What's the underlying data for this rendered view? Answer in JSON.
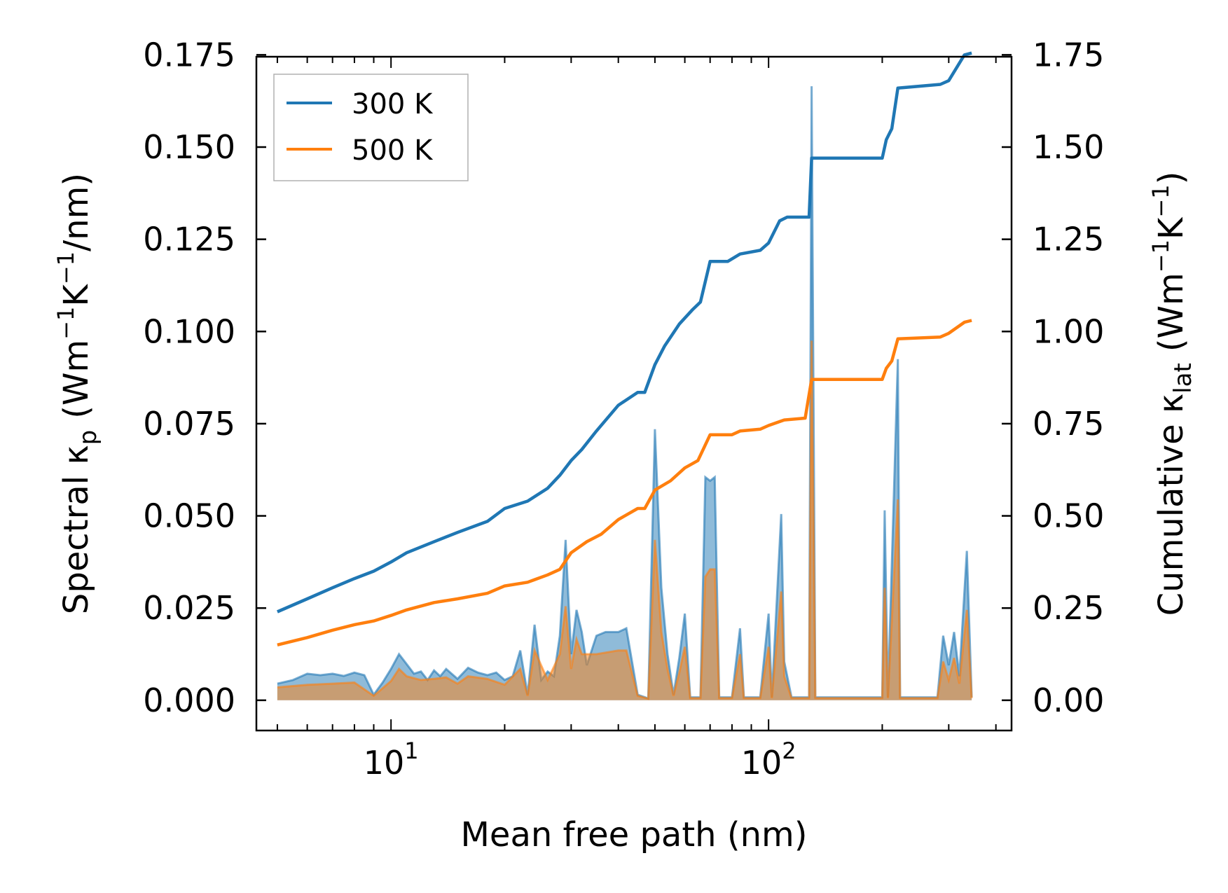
{
  "chart_data": {
    "type": "line",
    "xscale": "log",
    "xlim": [
      4.4,
      440
    ],
    "ylim_left": [
      -0.0082,
      0.1745
    ],
    "ylim_right": [
      -0.082,
      1.745
    ],
    "xlabel": "Mean free path (nm)",
    "ylabel_left": {
      "main": "Spectral κ",
      "sub": "p",
      "unit_pre": "(Wm",
      "exp1": "−1",
      "unit_mid": "K",
      "exp2": "−1",
      "unit_post": "/nm)"
    },
    "ylabel_right": {
      "main": "Cumulative κ",
      "sub": "lat",
      "unit_pre": "(Wm",
      "exp1": "−1",
      "unit_mid": "K",
      "exp2": "−1",
      "unit_post": ")"
    },
    "x_ticks": [
      {
        "value": 10,
        "base": "10",
        "exp": "1"
      },
      {
        "value": 100,
        "base": "10",
        "exp": "2"
      }
    ],
    "y_ticks_left": [
      "0.000",
      "0.025",
      "0.050",
      "0.075",
      "0.100",
      "0.125",
      "0.150",
      "0.175"
    ],
    "y_ticks_left_values": [
      0,
      0.025,
      0.05,
      0.075,
      0.1,
      0.125,
      0.15,
      0.175
    ],
    "y_ticks_right": [
      "0.00",
      "0.25",
      "0.50",
      "0.75",
      "1.00",
      "1.25",
      "1.50",
      "1.75"
    ],
    "y_ticks_right_values": [
      0,
      0.25,
      0.5,
      0.75,
      1.0,
      1.25,
      1.5,
      1.75
    ],
    "legend": {
      "position": "top-left",
      "entries": [
        {
          "label": "300 K",
          "color": "#1f77b4"
        },
        {
          "label": "500 K",
          "color": "#ff7f0e"
        }
      ]
    },
    "cumulative_series": [
      {
        "name": "300 K",
        "color": "#1f77b4",
        "points": [
          [
            5,
            0.24
          ],
          [
            6,
            0.275
          ],
          [
            7,
            0.305
          ],
          [
            8,
            0.33
          ],
          [
            9,
            0.35
          ],
          [
            10,
            0.375
          ],
          [
            11,
            0.4
          ],
          [
            13,
            0.43
          ],
          [
            15,
            0.455
          ],
          [
            18,
            0.485
          ],
          [
            20,
            0.52
          ],
          [
            23,
            0.54
          ],
          [
            26,
            0.575
          ],
          [
            28,
            0.61
          ],
          [
            30,
            0.65
          ],
          [
            32,
            0.68
          ],
          [
            35,
            0.73
          ],
          [
            40,
            0.8
          ],
          [
            45,
            0.835
          ],
          [
            47,
            0.835
          ],
          [
            50,
            0.91
          ],
          [
            53,
            0.96
          ],
          [
            58,
            1.02
          ],
          [
            63,
            1.06
          ],
          [
            66,
            1.08
          ],
          [
            70,
            1.19
          ],
          [
            78,
            1.19
          ],
          [
            84,
            1.21
          ],
          [
            95,
            1.22
          ],
          [
            100,
            1.24
          ],
          [
            107,
            1.3
          ],
          [
            112,
            1.31
          ],
          [
            128,
            1.31
          ],
          [
            130,
            1.47
          ],
          [
            200,
            1.47
          ],
          [
            205,
            1.52
          ],
          [
            212,
            1.55
          ],
          [
            220,
            1.66
          ],
          [
            285,
            1.67
          ],
          [
            300,
            1.68
          ],
          [
            330,
            1.75
          ],
          [
            345,
            1.755
          ]
        ]
      },
      {
        "name": "500 K",
        "color": "#ff7f0e",
        "points": [
          [
            5,
            0.15
          ],
          [
            6,
            0.17
          ],
          [
            7,
            0.19
          ],
          [
            8,
            0.205
          ],
          [
            9,
            0.215
          ],
          [
            10,
            0.23
          ],
          [
            11,
            0.245
          ],
          [
            13,
            0.265
          ],
          [
            15,
            0.275
          ],
          [
            18,
            0.29
          ],
          [
            20,
            0.31
          ],
          [
            23,
            0.32
          ],
          [
            26,
            0.34
          ],
          [
            28,
            0.355
          ],
          [
            30,
            0.4
          ],
          [
            33,
            0.43
          ],
          [
            36,
            0.45
          ],
          [
            40,
            0.49
          ],
          [
            45,
            0.52
          ],
          [
            47,
            0.52
          ],
          [
            50,
            0.57
          ],
          [
            55,
            0.595
          ],
          [
            60,
            0.63
          ],
          [
            65,
            0.65
          ],
          [
            70,
            0.72
          ],
          [
            80,
            0.72
          ],
          [
            84,
            0.73
          ],
          [
            95,
            0.735
          ],
          [
            100,
            0.745
          ],
          [
            110,
            0.76
          ],
          [
            125,
            0.765
          ],
          [
            130,
            0.87
          ],
          [
            200,
            0.87
          ],
          [
            205,
            0.9
          ],
          [
            212,
            0.92
          ],
          [
            220,
            0.98
          ],
          [
            285,
            0.985
          ],
          [
            300,
            0.995
          ],
          [
            330,
            1.025
          ],
          [
            345,
            1.03
          ]
        ]
      }
    ],
    "spectral_series": [
      {
        "name": "300 K",
        "color": "#1f77b4",
        "points": [
          [
            5,
            0.0045
          ],
          [
            5.5,
            0.0055
          ],
          [
            6,
            0.0072
          ],
          [
            6.5,
            0.0068
          ],
          [
            7,
            0.0072
          ],
          [
            7.5,
            0.0066
          ],
          [
            8,
            0.0075
          ],
          [
            8.5,
            0.0068
          ],
          [
            9,
            0.0015
          ],
          [
            9.5,
            0.0048
          ],
          [
            10,
            0.0085
          ],
          [
            10.5,
            0.0125
          ],
          [
            11,
            0.0098
          ],
          [
            11.5,
            0.0072
          ],
          [
            12,
            0.0078
          ],
          [
            12.5,
            0.0055
          ],
          [
            13,
            0.0081
          ],
          [
            13.5,
            0.0065
          ],
          [
            14,
            0.0085
          ],
          [
            15,
            0.0058
          ],
          [
            16,
            0.0088
          ],
          [
            17,
            0.0075
          ],
          [
            18,
            0.0068
          ],
          [
            19,
            0.0075
          ],
          [
            20,
            0.0055
          ],
          [
            21,
            0.0065
          ],
          [
            22,
            0.0135
          ],
          [
            23,
            0.0015
          ],
          [
            24,
            0.0205
          ],
          [
            25,
            0.0055
          ],
          [
            26,
            0.0078
          ],
          [
            27,
            0.0065
          ],
          [
            28,
            0.0175
          ],
          [
            29,
            0.0435
          ],
          [
            30,
            0.0125
          ],
          [
            31,
            0.0245
          ],
          [
            32,
            0.0185
          ],
          [
            33,
            0.0095
          ],
          [
            35,
            0.0175
          ],
          [
            37,
            0.0185
          ],
          [
            40,
            0.0185
          ],
          [
            42,
            0.0195
          ],
          [
            45,
            0.0015
          ],
          [
            48,
            0.0005
          ],
          [
            50,
            0.0735
          ],
          [
            52,
            0.0305
          ],
          [
            54,
            0.0125
          ],
          [
            56,
            0.0015
          ],
          [
            58,
            0.0115
          ],
          [
            60,
            0.0235
          ],
          [
            62,
            0.0008
          ],
          [
            66,
            0.0008
          ],
          [
            68,
            0.0605
          ],
          [
            70,
            0.0595
          ],
          [
            72,
            0.0605
          ],
          [
            74,
            0.0008
          ],
          [
            80,
            0.0008
          ],
          [
            84,
            0.0195
          ],
          [
            86,
            0.0008
          ],
          [
            95,
            0.0008
          ],
          [
            100,
            0.0235
          ],
          [
            102,
            0.0008
          ],
          [
            108,
            0.0505
          ],
          [
            110,
            0.0105
          ],
          [
            115,
            0.0008
          ],
          [
            128,
            0.0008
          ],
          [
            130,
            0.1665
          ],
          [
            133,
            0.0008
          ],
          [
            200,
            0.0008
          ],
          [
            203,
            0.0515
          ],
          [
            207,
            0.0008
          ],
          [
            220,
            0.0925
          ],
          [
            223,
            0.0008
          ],
          [
            280,
            0.0008
          ],
          [
            290,
            0.0175
          ],
          [
            300,
            0.0095
          ],
          [
            310,
            0.0185
          ],
          [
            320,
            0.0065
          ],
          [
            335,
            0.0405
          ],
          [
            345,
            0.0008
          ]
        ]
      },
      {
        "name": "500 K",
        "color": "#ff7f0e",
        "points": [
          [
            5,
            0.0035
          ],
          [
            6,
            0.0042
          ],
          [
            7,
            0.0045
          ],
          [
            8,
            0.0048
          ],
          [
            9,
            0.0012
          ],
          [
            10,
            0.0052
          ],
          [
            10.5,
            0.0085
          ],
          [
            11,
            0.0065
          ],
          [
            12,
            0.0055
          ],
          [
            13,
            0.0058
          ],
          [
            14,
            0.0062
          ],
          [
            15,
            0.0045
          ],
          [
            16,
            0.0065
          ],
          [
            18,
            0.0058
          ],
          [
            20,
            0.0042
          ],
          [
            22,
            0.0085
          ],
          [
            23,
            0.0012
          ],
          [
            24,
            0.0135
          ],
          [
            26,
            0.0055
          ],
          [
            28,
            0.0125
          ],
          [
            29,
            0.0255
          ],
          [
            30,
            0.0085
          ],
          [
            31,
            0.0165
          ],
          [
            32,
            0.0125
          ],
          [
            35,
            0.0125
          ],
          [
            40,
            0.0135
          ],
          [
            42,
            0.0135
          ],
          [
            45,
            0.0012
          ],
          [
            48,
            0.0004
          ],
          [
            50,
            0.0435
          ],
          [
            52,
            0.0185
          ],
          [
            54,
            0.0085
          ],
          [
            56,
            0.0012
          ],
          [
            58,
            0.0075
          ],
          [
            60,
            0.0145
          ],
          [
            62,
            0.0006
          ],
          [
            66,
            0.0006
          ],
          [
            68,
            0.0335
          ],
          [
            70,
            0.0355
          ],
          [
            72,
            0.0355
          ],
          [
            74,
            0.0006
          ],
          [
            80,
            0.0006
          ],
          [
            84,
            0.0125
          ],
          [
            86,
            0.0006
          ],
          [
            95,
            0.0006
          ],
          [
            100,
            0.0145
          ],
          [
            102,
            0.0006
          ],
          [
            108,
            0.0295
          ],
          [
            110,
            0.0065
          ],
          [
            115,
            0.0006
          ],
          [
            128,
            0.0006
          ],
          [
            130,
            0.0975
          ],
          [
            133,
            0.0006
          ],
          [
            200,
            0.0006
          ],
          [
            203,
            0.0305
          ],
          [
            207,
            0.0006
          ],
          [
            220,
            0.0545
          ],
          [
            223,
            0.0006
          ],
          [
            280,
            0.0006
          ],
          [
            290,
            0.0105
          ],
          [
            300,
            0.0055
          ],
          [
            310,
            0.0115
          ],
          [
            320,
            0.0045
          ],
          [
            335,
            0.0245
          ],
          [
            345,
            0.0006
          ]
        ]
      }
    ]
  }
}
